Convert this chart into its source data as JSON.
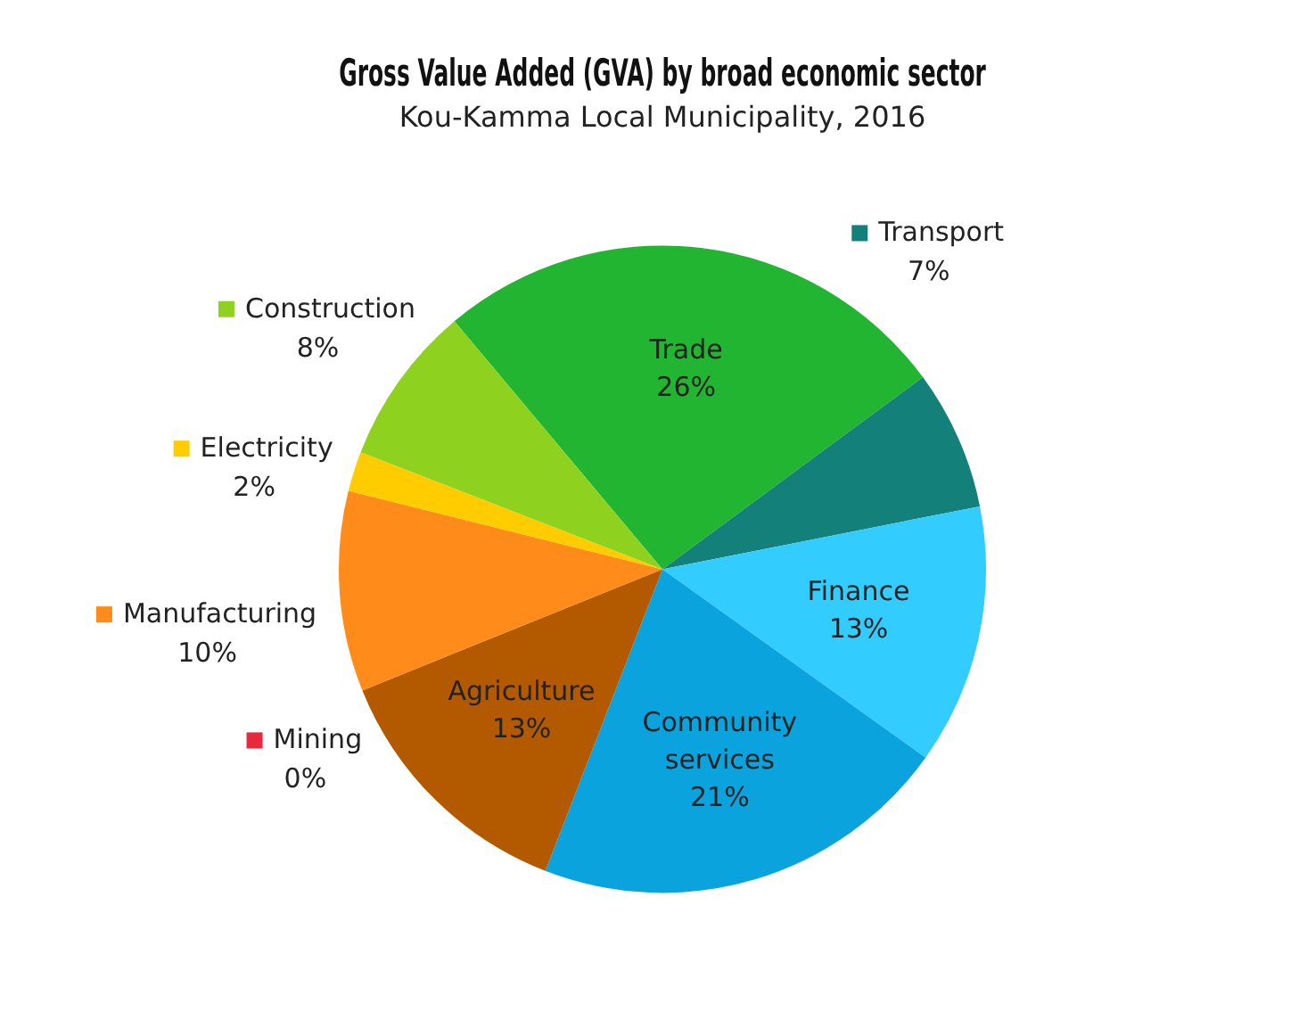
{
  "chart_data": {
    "type": "pie",
    "title": "Gross Value Added (GVA) by broad economic sector",
    "subtitle": "Kou-Kamma Local Municipality, 2016",
    "categories": [
      "Trade",
      "Transport",
      "Finance",
      "Community services",
      "Agriculture",
      "Mining",
      "Manufacturing",
      "Electricity",
      "Construction"
    ],
    "values": [
      26,
      7,
      13,
      21,
      13,
      0,
      10,
      2,
      8
    ],
    "value_labels": [
      "26%",
      "7%",
      "13%",
      "21%",
      "13%",
      "0%",
      "10%",
      "2%",
      "8%"
    ],
    "colors": [
      "#22b531",
      "#14807a",
      "#33ccff",
      "#0aa3dd",
      "#b35a00",
      "#e8283c",
      "#ff8c1a",
      "#ffcc00",
      "#8fd11f"
    ],
    "legend": "left"
  }
}
